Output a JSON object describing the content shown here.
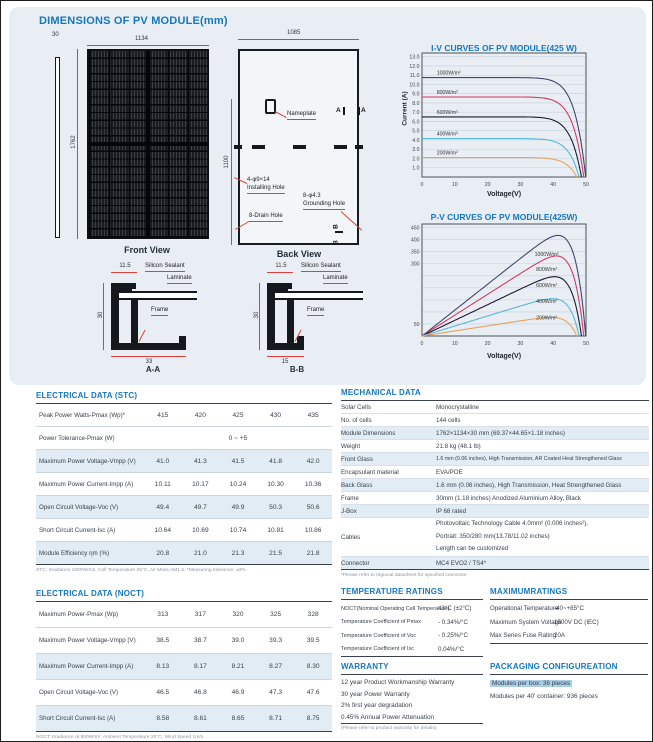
{
  "header": {
    "title": "DIMENSIONS OF PV MODULE(mm)"
  },
  "drawings": {
    "front": {
      "caption": "Front View",
      "width": "1134",
      "height": "1762",
      "thickness": "30"
    },
    "back": {
      "caption": "Back View",
      "width": "1085",
      "hole_spacing": "1100",
      "nameplate": "Nameplate",
      "marker_a": "A",
      "marker_b": "B",
      "installing_hole_line1": "4-φ9×14",
      "installing_hole_line2": "Installing Hole",
      "grounding_hole_line1": "8-φ4.3",
      "grounding_hole_line2": "Grounding Hole",
      "drain_hole": "8-Drain Hole"
    },
    "section_aa": {
      "caption": "A-A",
      "top_width": "11.5",
      "height": "30",
      "bottom_width": "33",
      "sealant": "Silicon Sealant",
      "laminate": "Laminate",
      "frame": "Frame"
    },
    "section_bb": {
      "caption": "B-B",
      "top_width": "11.5",
      "height": "30",
      "bottom_width": "15",
      "sealant": "Silicon Sealant",
      "laminate": "Laminate",
      "frame": "Frame"
    }
  },
  "chart_data": [
    {
      "type": "line",
      "title": "I-V CURVES OF PV MODULE(425 W)",
      "xlabel": "Voltage(V)",
      "ylabel": "Current (A)",
      "y_quantity": "current",
      "xlim": [
        0,
        50
      ],
      "ylim": [
        0,
        13.4
      ],
      "grid": "horizontal",
      "legend": "inline-labels",
      "x_ticks": [
        0,
        10,
        20,
        30,
        40,
        50
      ],
      "y_ticks": [
        {
          "v": 1,
          "label": "1.0"
        },
        {
          "v": 2,
          "label": "2.0"
        },
        {
          "v": 3,
          "label": "3.0"
        },
        {
          "v": 4,
          "label": "4.0"
        },
        {
          "v": 5,
          "label": "5.0"
        },
        {
          "v": 6,
          "label": "6.0"
        },
        {
          "v": 7,
          "label": "7.0"
        },
        {
          "v": 8,
          "label": "8.0"
        },
        {
          "v": 9,
          "label": "9.0"
        },
        {
          "v": 10,
          "label": "10.0"
        },
        {
          "v": 11,
          "label": "11.0"
        },
        {
          "v": 12,
          "label": "12.0"
        },
        {
          "v": 13,
          "label": "13.0"
        }
      ],
      "series": [
        {
          "name": "1000W/m²",
          "color": "#45456b",
          "isc": 10.74,
          "voc": 49.9,
          "pmax": 425
        },
        {
          "name": "800W/m²",
          "color": "#d23b69",
          "isc": 8.65,
          "voc": 49.3,
          "pmax": 345
        },
        {
          "name": "600W/m²",
          "color": "#1b1b32",
          "isc": 6.5,
          "voc": 48.6,
          "pmax": 260
        },
        {
          "name": "400W/m²",
          "color": "#58b7d6",
          "isc": 4.15,
          "voc": 47.9,
          "pmax": 175
        },
        {
          "name": "200W/m²",
          "color": "#e4a45c",
          "isc": 2.1,
          "voc": 47.2,
          "pmax": 88
        }
      ]
    },
    {
      "type": "line",
      "title": "P-V CURVES OF PV MODULE(425W)",
      "xlabel": "Voltage(V)",
      "ylabel": "",
      "y_quantity": "power",
      "xlim": [
        0,
        50
      ],
      "ylim": [
        0,
        465
      ],
      "grid": "horizontal",
      "legend": "inline-labels",
      "x_ticks": [
        0,
        10,
        20,
        30,
        40,
        50
      ],
      "y_ticks": [
        {
          "v": 450,
          "label": "450"
        },
        {
          "v": 400,
          "label": "400"
        },
        {
          "v": 350,
          "label": "350"
        },
        {
          "v": 300,
          "label": "300"
        },
        {
          "v": 250,
          "label": ""
        },
        {
          "v": 200,
          "label": ""
        },
        {
          "v": 150,
          "label": ""
        },
        {
          "v": 100,
          "label": ""
        },
        {
          "v": 50,
          "label": "50"
        }
      ],
      "series": [
        {
          "name": "1000W/m²",
          "color": "#45456b",
          "isc": 10.74,
          "voc": 49.9,
          "pmax": 425
        },
        {
          "name": "800W/m²",
          "color": "#d23b69",
          "isc": 8.65,
          "voc": 49.3,
          "pmax": 345
        },
        {
          "name": "600W/m²",
          "color": "#1b1b32",
          "isc": 6.5,
          "voc": 48.6,
          "pmax": 260
        },
        {
          "name": "400W/m²",
          "color": "#58b7d6",
          "isc": 4.15,
          "voc": 47.9,
          "pmax": 175
        },
        {
          "name": "200W/m²",
          "color": "#e4a45c",
          "isc": 2.1,
          "voc": 47.2,
          "pmax": 88
        }
      ]
    }
  ],
  "tables": {
    "stc": {
      "title": "ELECTRICAL DATA (STC)",
      "rows": [
        {
          "label": "Peak Power Watts-Pmax (Wp)*",
          "values": [
            "415",
            "420",
            "425",
            "430",
            "435"
          ]
        },
        {
          "label": "Power Tolerance-Pmax (W)",
          "span": "0 ~ +5"
        },
        {
          "label": "Maximum Power Voltage-Vmpp (V)",
          "values": [
            "41.0",
            "41.3",
            "41.5",
            "41.8",
            "42.0"
          ]
        },
        {
          "label": "Maximum Power Current-Impp (A)",
          "values": [
            "10.11",
            "10.17",
            "10.24",
            "10.30",
            "10.36"
          ]
        },
        {
          "label": "Open Circuit Voltage-Voc (V)",
          "values": [
            "49.4",
            "49.7",
            "49.9",
            "50.3",
            "50.6"
          ]
        },
        {
          "label": "Short Circuit Current-Isc (A)",
          "values": [
            "10.64",
            "10.69",
            "10.74",
            "10.81",
            "10.86"
          ]
        },
        {
          "label": "Module Efficiency ηm (%)",
          "values": [
            "20.8",
            "21.0",
            "21.3",
            "21.5",
            "21.8"
          ]
        }
      ],
      "footnote": "STC: Irradiance 1000W/m2, Cell Temperature 25°C, Air Mass AM1.5.   *Measuring tolerance: ±3%."
    },
    "noct": {
      "title": "ELECTRICAL DATA (NOCT)",
      "rows": [
        {
          "label": "Maximum Power-Pmax (Wp)",
          "values": [
            "313",
            "317",
            "320",
            "325",
            "328"
          ]
        },
        {
          "label": "Maximum Power Voltage-Vmpp (V)",
          "values": [
            "38.5",
            "38.7",
            "39.0",
            "39.3",
            "39.5"
          ]
        },
        {
          "label": "Maximum Power Current-Impp (A)",
          "values": [
            "8.13",
            "8.17",
            "8.21",
            "8.27",
            "8.30"
          ]
        },
        {
          "label": "Open Circuit Voltage-Voc (V)",
          "values": [
            "46.5",
            "46.8",
            "46.9",
            "47.3",
            "47.6"
          ]
        },
        {
          "label": "Short Circuit Current-Isc (A)",
          "values": [
            "8.58",
            "8.61",
            "8.65",
            "8.71",
            "8.75"
          ]
        }
      ],
      "footnote": "NOCT: Irradiance at 800W/m², Ambient Temperature 20°C, Wind Speed 1m/s."
    },
    "mechanical": {
      "title": "MECHANICAL DATA",
      "rows": [
        {
          "label": "Solar Cells",
          "value": "Monocrystalline"
        },
        {
          "label": "No. of cells",
          "value": "144 cells"
        },
        {
          "label": "Module Dimensions",
          "value": "1762×1134×30 mm (69.37×44.65×1.18 inches)"
        },
        {
          "label": "Weight",
          "value": "21.8 kg (48.1 lb)"
        },
        {
          "label": "Front Glass",
          "value": "1.6 mm (0.06 inches), High Transmission, AR Coated Heat Strengthened Glass"
        },
        {
          "label": "Encapsulant material",
          "value": "EVA/POE"
        },
        {
          "label": "Back Glass",
          "value": "1.6 mm (0.06 inches), High Transmission, Heat Strengthened Glass"
        },
        {
          "label": "Frame",
          "value": "30mm (1.18 inches) Anodized Aluminium Alloy, Black"
        },
        {
          "label": "J-Box",
          "value": "IP 68 rated"
        },
        {
          "label": "Cables",
          "value": "Photovoltaic Technology Cable 4.0mm² (0.006 inches²),\nPortrait: 350/280 mm(13.78/11.02 inches)\nLength can be customized"
        },
        {
          "label": "Connector",
          "value": "MC4 EVO2 / TS4*"
        }
      ],
      "footnote": "*Please refer to regional datasheet for specified connector."
    },
    "temperature": {
      "title": "TEMPERATURE RATINGS",
      "rows": [
        {
          "label": "NOCT(Nominal Operating Cell Temperature)",
          "value": "43°C (±2°C)"
        },
        {
          "label": "Temperature Coefficient of Pmax",
          "value": "- 0.34%/°C"
        },
        {
          "label": "Temperature Coefficient of Voc",
          "value": "- 0.25%/°C"
        },
        {
          "label": "Temperature Coefficient of Isc",
          "value": "0.04%/°C"
        }
      ]
    },
    "maximum": {
      "title": "MAXIMUMRATINGS",
      "rows": [
        {
          "label": "Operational Temperature",
          "value": "-40~+85°C"
        },
        {
          "label": "Maximum System Voltage",
          "value": "1500V DC (IEC)"
        },
        {
          "label": "Max Series Fuse Rating",
          "value": "20A"
        }
      ]
    },
    "warranty": {
      "title": "WARRANTY",
      "lines": [
        "12 year Product Workmanship Warranty",
        "30 year Power Warranty",
        "2% first year degradation",
        "0.45% Annual Power Attenuation"
      ],
      "footnote": "(Please refer to product warranty for details)"
    },
    "packaging": {
      "title": "PACKAGING CONFIGUREATION",
      "lines": [
        {
          "text": "Modules per box: 36 pieces",
          "highlighted": true
        },
        {
          "text": "Modules per 40' container: 936 pieces",
          "highlighted": false
        }
      ]
    }
  }
}
